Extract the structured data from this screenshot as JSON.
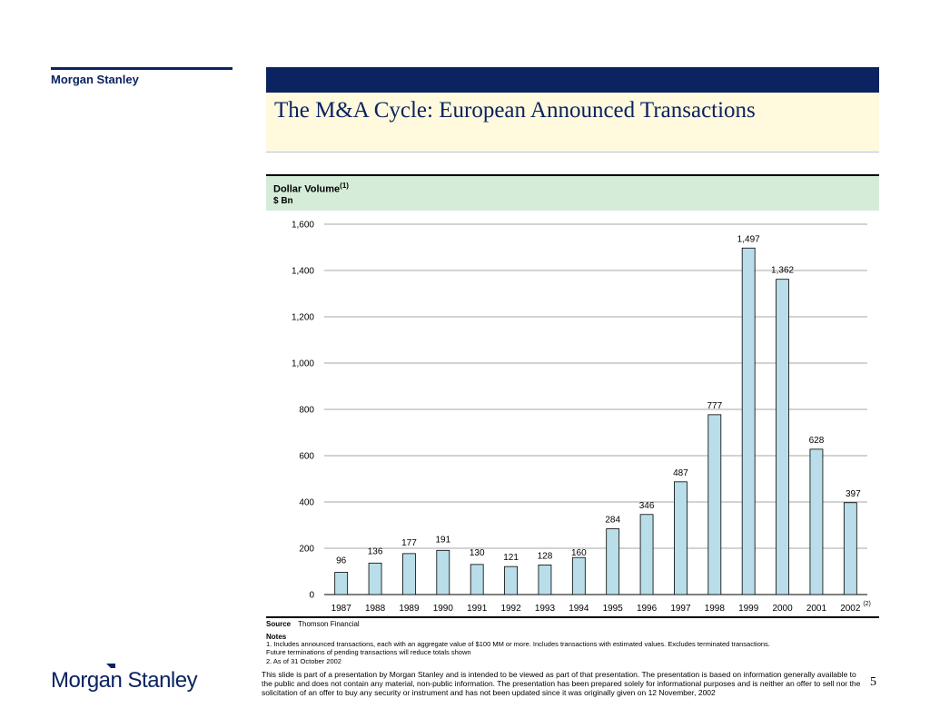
{
  "brand": {
    "top_label": "Morgan Stanley",
    "logo_text": "Morgan Stanley"
  },
  "slide": {
    "title": "The M&A Cycle: European Announced Transactions",
    "page_number": "5"
  },
  "chart_header": {
    "title": "Dollar Volume",
    "title_note": "(1)",
    "unit": "$ Bn"
  },
  "chart_data": {
    "type": "bar",
    "categories": [
      "1987",
      "1988",
      "1989",
      "1990",
      "1991",
      "1992",
      "1993",
      "1994",
      "1995",
      "1996",
      "1997",
      "1998",
      "1999",
      "2000",
      "2001",
      "2002"
    ],
    "values": [
      96,
      136,
      177,
      191,
      130,
      121,
      128,
      160,
      284,
      346,
      487,
      777,
      1497,
      1362,
      628,
      397
    ],
    "value_labels": [
      "96",
      "136",
      "177",
      "191",
      "130",
      "121",
      "128",
      "160",
      "284",
      "346",
      "487",
      "777",
      "1,497",
      "1,362",
      "628",
      "397"
    ],
    "title": "Dollar Volume",
    "ylabel": "$ Bn",
    "ylim": [
      0,
      1600
    ],
    "yticks": [
      "0",
      "200",
      "400",
      "600",
      "800",
      "1,000",
      "1,200",
      "1,400",
      "1,600"
    ],
    "last_category_note": "(2)",
    "grid": true,
    "bar_color": "#b9dde9",
    "bar_stroke": "#000000"
  },
  "source": {
    "label": "Source",
    "text": "Thomson Financial"
  },
  "notes": {
    "title": "Notes",
    "items": [
      "1.  Includes announced transactions, each with an aggregate value of $100 MM or more. Includes transactions with estimated values. Excludes terminated transactions. Future terminations of pending transactions will reduce totals shown",
      "2.  As of 31 October 2002"
    ]
  },
  "disclaimer": "This slide is part of a presentation by Morgan Stanley and is intended to be viewed as part of that presentation.  The presentation is based on information generally available to the public and does not contain any material, non-public information.  The presentation has been prepared solely for informational purposes and is neither an offer to sell nor the solicitation of an offer to buy any security or instrument and has not been updated since it was originally given on 12 November, 2002",
  "colors": {
    "navy": "#0b2360",
    "title_band": "#fff9dd",
    "chart_header": "#d5ecd9"
  }
}
